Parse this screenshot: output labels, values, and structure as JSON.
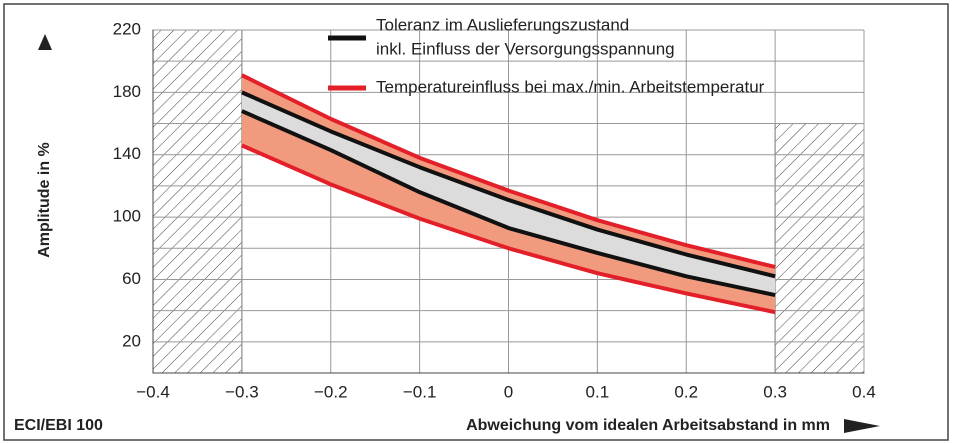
{
  "chart_data": {
    "type": "band",
    "xlabel": "Abweichung vom idealen Arbeitsabstand in mm",
    "ylabel": "Amplitude in %",
    "footnote": "ECI/EBI 100",
    "x": [
      -0.3,
      -0.2,
      -0.1,
      0,
      0.1,
      0.2,
      0.3
    ],
    "series": [
      {
        "name": [
          "Toleranz im Auslieferungszustand",
          "inkl. Einfluss der Versorgungsspannung"
        ],
        "color": "#111111",
        "fill": "#dcdcdc",
        "upper": [
          180,
          155,
          132,
          111,
          92,
          76,
          62
        ],
        "lower": [
          168,
          143,
          116,
          93,
          77,
          62,
          50
        ]
      },
      {
        "name": [
          "Temperatureinfluss bei max./min. Arbeitstemperatur"
        ],
        "color": "#e3202a",
        "fill": "#f29a7e",
        "upper": [
          191,
          163,
          138,
          117,
          98,
          82,
          68
        ],
        "lower": [
          146,
          121,
          99,
          80,
          64,
          51,
          39
        ]
      }
    ],
    "hatched_regions": [
      {
        "xlim": [
          -0.4,
          -0.3
        ],
        "ylim": [
          0,
          220
        ]
      },
      {
        "xlim": [
          0.3,
          0.4
        ],
        "ylim": [
          0,
          160
        ]
      }
    ],
    "xlim": [
      -0.4,
      0.4
    ],
    "xticks": [
      {
        "value": -0.4,
        "label": "−0.4"
      },
      {
        "value": -0.3,
        "label": "−0.3"
      },
      {
        "value": -0.2,
        "label": "−0.2"
      },
      {
        "value": -0.1,
        "label": "−0.1"
      },
      0,
      0.1,
      0.2,
      0.3,
      0.4
    ],
    "ylim": [
      0,
      220
    ],
    "yticks": [
      20,
      60,
      100,
      140,
      180,
      220
    ],
    "minor_yticks": [
      40,
      80,
      120,
      160,
      200
    ],
    "grid": true
  }
}
